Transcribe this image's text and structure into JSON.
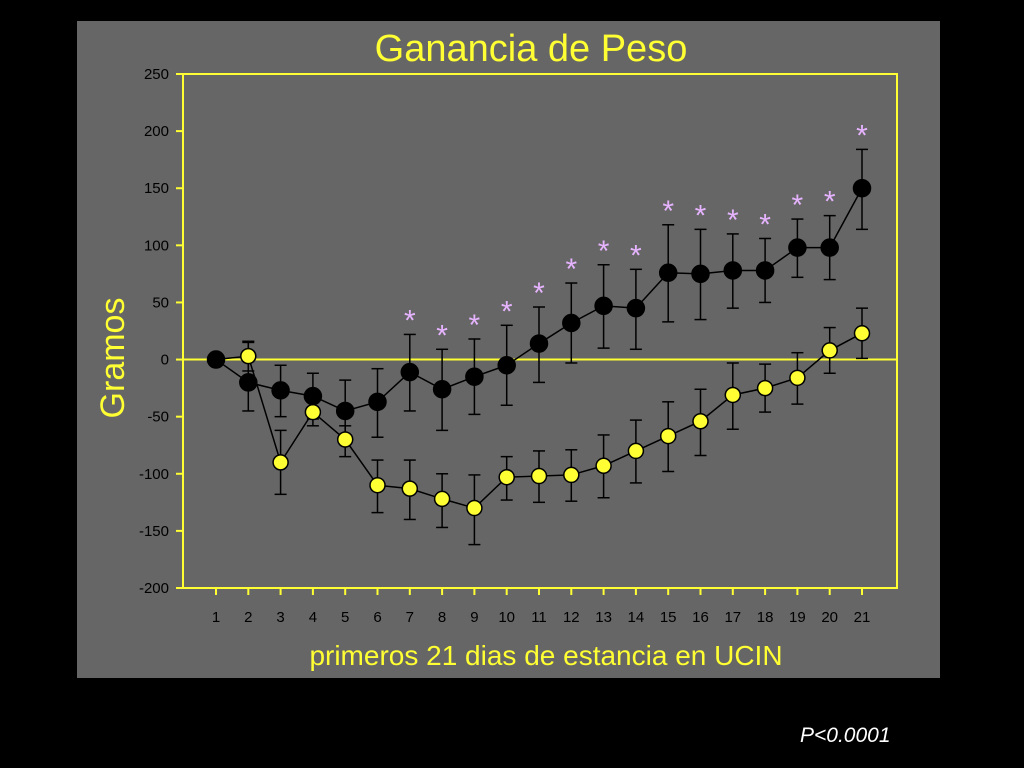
{
  "colors": {
    "background": "#000000",
    "panel": "#666666",
    "axis": "#ffff33",
    "text": "#ffff33",
    "tick_text": "#000000",
    "significance": "#e6b3ff",
    "footnote": "#ffffff",
    "series_black": "#000000",
    "series_yellow": "#ffff33"
  },
  "footnote": "P<0.0001",
  "chart_data": {
    "type": "line",
    "title": "Ganancia de Peso",
    "xlabel": "primeros 21 dias de estancia en UCIN",
    "ylabel": "Gramos",
    "categories": [
      "1",
      "2",
      "3",
      "4",
      "5",
      "6",
      "7",
      "8",
      "9",
      "10",
      "11",
      "12",
      "13",
      "14",
      "15",
      "16",
      "17",
      "18",
      "19",
      "20",
      "21"
    ],
    "ylim": [
      -200,
      250
    ],
    "yticks": [
      250,
      200,
      150,
      100,
      50,
      0,
      -50,
      -100,
      -150,
      -200
    ],
    "zero_line": true,
    "grid": false,
    "significance_marker": "*",
    "significant_days": [
      7,
      8,
      9,
      10,
      11,
      12,
      13,
      14,
      15,
      16,
      17,
      18,
      19,
      20,
      21
    ],
    "series": [
      {
        "color": "#000000",
        "values": [
          0,
          -20,
          -27,
          -32,
          -45,
          -37,
          -11,
          -26,
          -15,
          -5,
          14,
          32,
          47,
          45,
          76,
          75,
          78,
          78,
          98,
          98,
          150
        ],
        "error_low": [
          0,
          -45,
          -50,
          -52,
          -72,
          -68,
          -45,
          -62,
          -48,
          -40,
          -20,
          -3,
          10,
          9,
          33,
          35,
          45,
          50,
          72,
          70,
          114
        ],
        "error_high": [
          0,
          15,
          -5,
          -12,
          -18,
          -8,
          22,
          9,
          18,
          30,
          46,
          67,
          83,
          79,
          118,
          114,
          110,
          106,
          123,
          126,
          184
        ]
      },
      {
        "color": "#ffff33",
        "values": [
          0,
          3,
          -90,
          -46,
          -70,
          -110,
          -113,
          -122,
          -130,
          -103,
          -102,
          -101,
          -93,
          -80,
          -67,
          -54,
          -31,
          -25,
          -16,
          8,
          23
        ],
        "error_low": [
          0,
          -10,
          -118,
          -58,
          -85,
          -134,
          -140,
          -147,
          -162,
          -123,
          -125,
          -124,
          -121,
          -108,
          -98,
          -84,
          -61,
          -46,
          -39,
          -12,
          1
        ],
        "error_high": [
          0,
          16,
          -62,
          -34,
          -58,
          -88,
          -88,
          -100,
          -101,
          -85,
          -80,
          -79,
          -66,
          -53,
          -37,
          -26,
          -3,
          -4,
          6,
          28,
          45
        ]
      }
    ]
  }
}
